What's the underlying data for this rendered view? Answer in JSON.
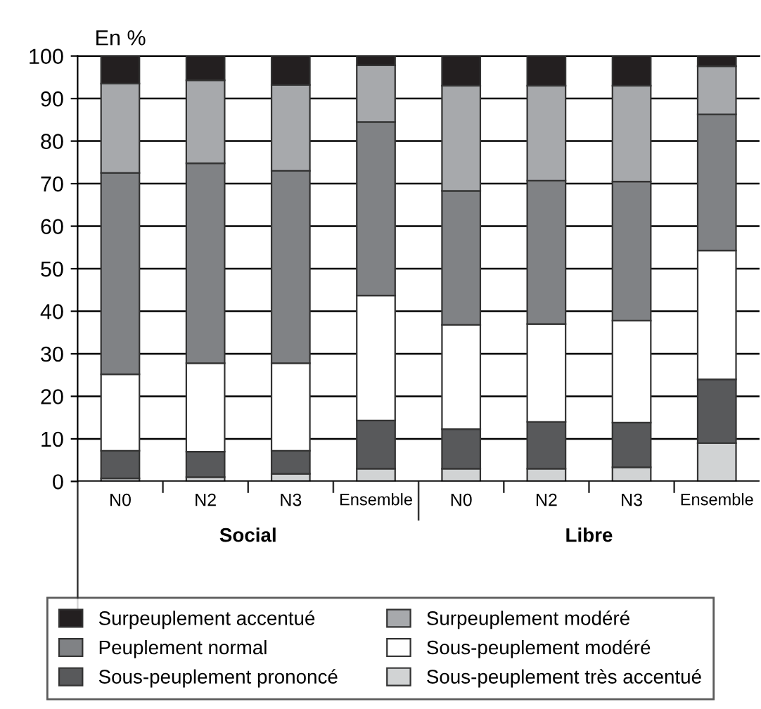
{
  "chart_data": {
    "type": "bar",
    "stacked": true,
    "ylabel": "En %",
    "categories": [
      "N0",
      "N2",
      "N3",
      "Ensemble",
      "N0",
      "N2",
      "N3",
      "Ensemble"
    ],
    "annotations": [
      "Social",
      "Libre"
    ],
    "ylim": [
      0,
      100
    ],
    "yticks": [
      0,
      10,
      20,
      30,
      40,
      50,
      60,
      70,
      80,
      90,
      100
    ],
    "grid": "y",
    "legend": "bottom",
    "series": [
      {
        "name": "Sous-peuplement très accentué",
        "color": "#d1d3d4",
        "values": [
          0.7,
          1,
          1.8,
          3,
          3,
          3,
          3.3,
          9
        ]
      },
      {
        "name": "Sous-peuplement prononcé",
        "color": "#58595b",
        "values": [
          6.5,
          6,
          5.4,
          11.3,
          9.3,
          11,
          10.5,
          15
        ]
      },
      {
        "name": "Sous-peuplement modéré",
        "color": "#ffffff",
        "values": [
          18,
          20.8,
          20.6,
          29.4,
          24.5,
          23,
          24,
          30.3
        ]
      },
      {
        "name": "Peuplement normal",
        "color": "#808285",
        "values": [
          47.3,
          47,
          45.2,
          40.8,
          31.5,
          33.7,
          32.7,
          32
        ]
      },
      {
        "name": "Surpeuplement modéré",
        "color": "#a7a9ac",
        "values": [
          21,
          19.5,
          20.2,
          13.3,
          24.7,
          22.3,
          22.5,
          11.3
        ]
      },
      {
        "name": "Surpeuplement accentué",
        "color": "#231f20",
        "values": [
          6.5,
          5.7,
          6.8,
          2.2,
          7,
          7,
          7,
          2.4
        ]
      }
    ]
  }
}
